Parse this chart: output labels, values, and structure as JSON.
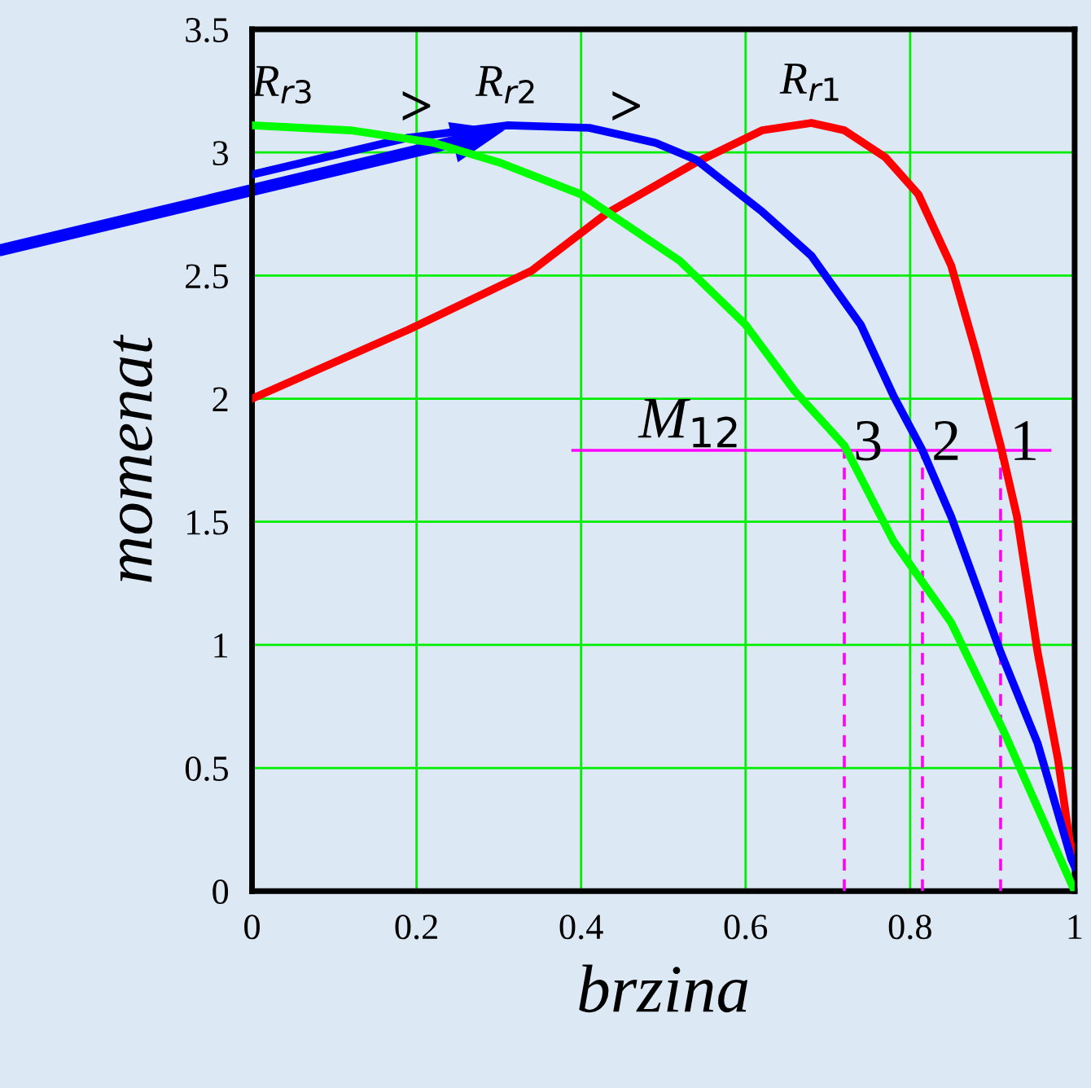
{
  "chart_data": {
    "type": "line",
    "xlabel": "brzina",
    "ylabel": "momenat",
    "xlim": [
      0,
      1
    ],
    "ylim": [
      0,
      3.5
    ],
    "xticks": [
      0,
      0.2,
      0.4,
      0.6,
      0.8,
      1
    ],
    "yticks": [
      0,
      0.5,
      1,
      1.5,
      2,
      2.5,
      3,
      3.5
    ],
    "grid": true,
    "marker": "none",
    "series": [
      {
        "name": "R$_{r1}$",
        "color": "#ff0000",
        "x": [
          0,
          0.19,
          0.34,
          0.43,
          0.54,
          0.62,
          0.68,
          0.72,
          0.77,
          0.81,
          0.85,
          0.88,
          0.91,
          0.93,
          0.955,
          0.98,
          0.994,
          1
        ],
        "values": [
          2.0,
          2.28,
          2.52,
          2.75,
          2.96,
          3.09,
          3.12,
          3.09,
          2.98,
          2.83,
          2.54,
          2.19,
          1.81,
          1.52,
          0.97,
          0.53,
          0.2,
          0.15
        ]
      },
      {
        "name": "R$_{r2}$",
        "color": "#0000ff",
        "x": [
          0,
          0.19,
          0.31,
          0.41,
          0.49,
          0.54,
          0.62,
          0.68,
          0.74,
          0.78,
          0.815,
          0.85,
          0.91,
          0.955,
          0.996,
          1
        ],
        "values": [
          2.91,
          3.06,
          3.11,
          3.1,
          3.04,
          2.97,
          2.76,
          2.58,
          2.3,
          2.01,
          1.79,
          1.52,
          0.97,
          0.6,
          0.13,
          0.1
        ]
      },
      {
        "name": "R$_{r3}$",
        "color": "#00ff00",
        "x": [
          0,
          0.12,
          0.22,
          0.3,
          0.4,
          0.52,
          0.6,
          0.66,
          0.72,
          0.78,
          0.85,
          0.915,
          1
        ],
        "values": [
          3.11,
          3.09,
          3.04,
          2.96,
          2.83,
          2.56,
          2.3,
          2.03,
          1.81,
          1.42,
          1.09,
          0.64,
          0
        ]
      },
      {
        "color": "#ff00ff",
        "x": [
          0.39,
          0.97
        ],
        "values": [
          1.79,
          1.79
        ],
        "line_style": "solid"
      },
      {
        "color": "#ff00ff",
        "x": [
          0.72,
          0.72
        ],
        "values": [
          0,
          1.79
        ],
        "line_style": "dashed"
      },
      {
        "color": "#ff00ff",
        "x": [
          0.815,
          0.815
        ],
        "values": [
          0,
          1.79
        ],
        "line_style": "dashed"
      },
      {
        "color": "#ff00ff",
        "x": [
          0.91,
          0.91
        ],
        "values": [
          0,
          1.79
        ],
        "line_style": "dashed"
      }
    ],
    "annotations": [
      {
        "text": "M$_{12}$",
        "x": 0.47,
        "y": 1.79
      },
      {
        "text": "3",
        "x": 0.72,
        "y": 1.79
      },
      {
        "text": "2",
        "x": 0.815,
        "y": 1.79
      },
      {
        "text": "1",
        "x": 0.91,
        "y": 1.79
      },
      ">",
      ">"
    ]
  }
}
